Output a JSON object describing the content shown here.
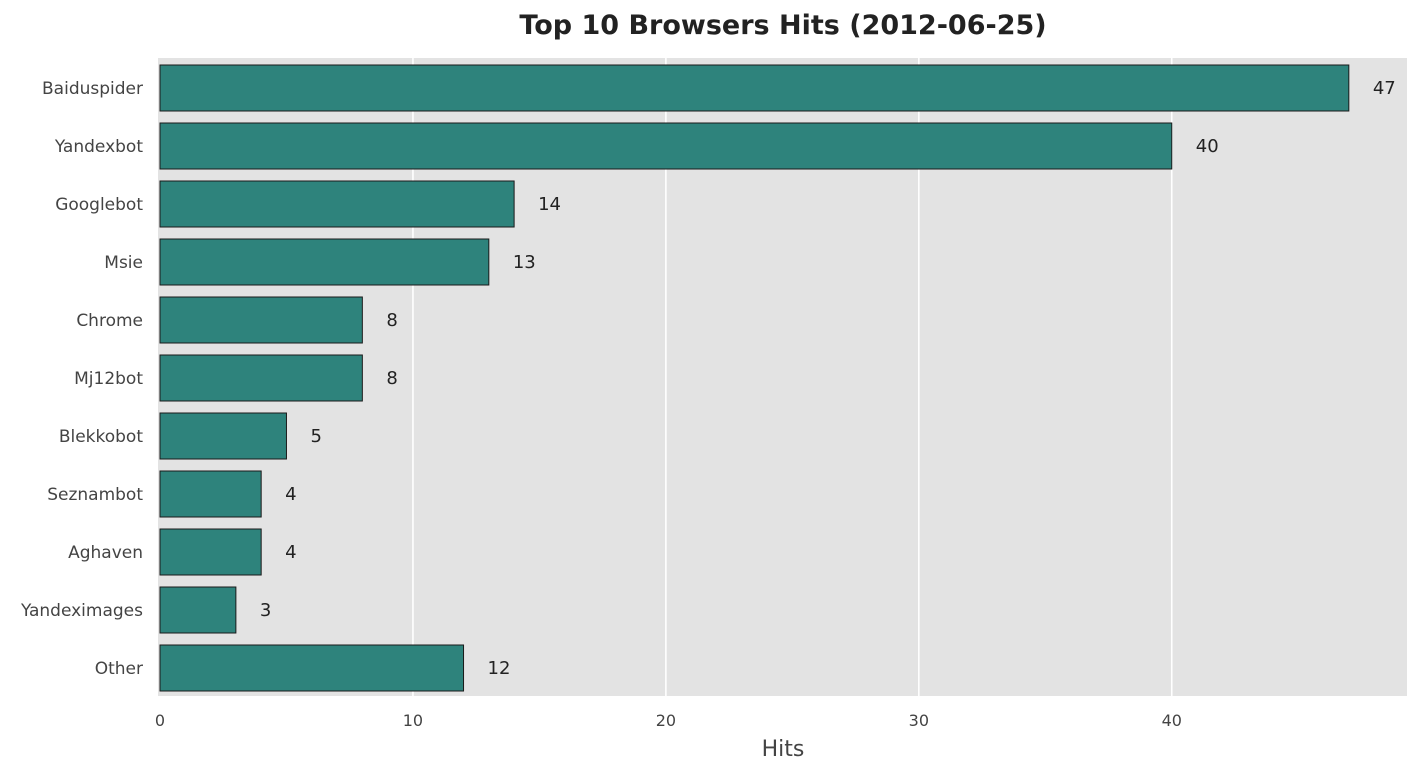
{
  "chart_data": {
    "type": "bar",
    "orientation": "horizontal",
    "title": "Top 10 Browsers Hits (2012-06-25)",
    "xlabel": "Hits",
    "ylabel": "",
    "categories": [
      "Baiduspider",
      "Yandexbot",
      "Googlebot",
      "Msie",
      "Chrome",
      "Mj12bot",
      "Blekkobot",
      "Seznambot",
      "Aghaven",
      "Yandeximages",
      "Other"
    ],
    "values": [
      47,
      40,
      14,
      13,
      8,
      8,
      5,
      4,
      4,
      3,
      12
    ],
    "xlim": [
      0,
      49.3
    ],
    "xticks": [
      0,
      10,
      20,
      30,
      40
    ],
    "grid": true,
    "colors": {
      "bar": "#2e837c",
      "bar_edge": "#1a1a1a",
      "plot_background": "#e3e3e3",
      "grid": "#ffffff"
    }
  }
}
